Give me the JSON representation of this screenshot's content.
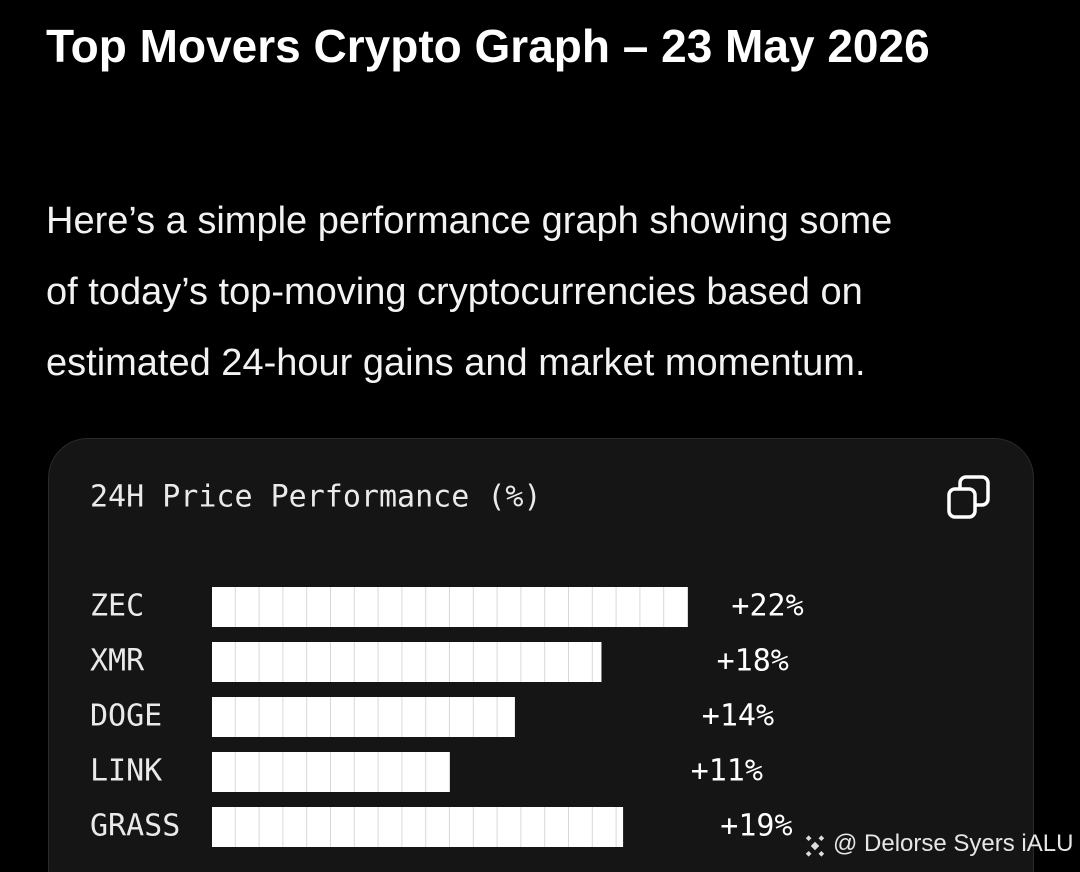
{
  "header": {
    "title": "Top Movers Crypto Graph – 23 May 2026",
    "intro_lines": [
      "Here’s a simple performance graph showing some",
      "of today’s top-moving cryptocurrencies based on",
      "estimated 24-hour gains and market momentum."
    ]
  },
  "chart_data": {
    "type": "hbar",
    "title": "24H Price Performance (%)",
    "categories": [
      "ZEC",
      "XMR",
      "DOGE",
      "LINK",
      "GRASS"
    ],
    "values": [
      22,
      18,
      14,
      11,
      19
    ],
    "value_labels": [
      "+22%",
      "+18%",
      "+14%",
      "+11%",
      "+19%"
    ],
    "color": "#ffffff"
  },
  "watermark": "@ Delorse Syers iALU"
}
